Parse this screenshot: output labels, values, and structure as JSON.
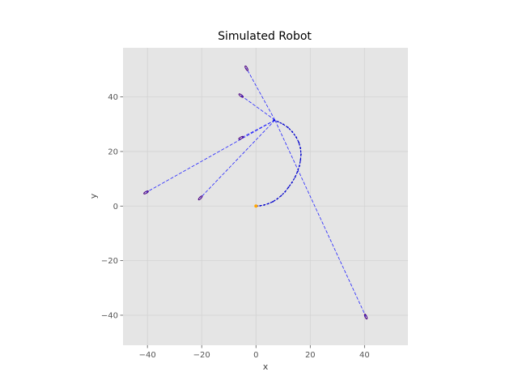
{
  "chart_data": {
    "type": "line",
    "title": "Simulated Robot",
    "xlabel": "x",
    "ylabel": "y",
    "xlim": [
      -49,
      56
    ],
    "ylim": [
      -51,
      58
    ],
    "xticks": [
      -40,
      -20,
      0,
      20,
      40
    ],
    "yticks": [
      -40,
      -20,
      0,
      20,
      40
    ],
    "grid": true,
    "colors": {
      "background": "#e5e5e5",
      "grid": "#d3d3d3",
      "path": "#0000cc",
      "rays": "#2222ff",
      "start": "#ffa500",
      "landmarks": "#4b0082"
    },
    "start_point": [
      0,
      0
    ],
    "trajectory": [
      [
        0,
        0
      ],
      [
        1.5,
        0.1
      ],
      [
        3,
        0.4
      ],
      [
        4.6,
        0.9
      ],
      [
        6.2,
        1.6
      ],
      [
        7.8,
        2.6
      ],
      [
        9.3,
        3.8
      ],
      [
        10.7,
        5.2
      ],
      [
        12,
        6.9
      ],
      [
        13.3,
        8.7
      ],
      [
        14.4,
        10.6
      ],
      [
        15.3,
        12.6
      ],
      [
        16,
        14.7
      ],
      [
        16.4,
        16.8
      ],
      [
        16.6,
        19
      ],
      [
        16.4,
        21.2
      ],
      [
        15.8,
        23.3
      ],
      [
        14.8,
        25.3
      ],
      [
        13.4,
        27.2
      ],
      [
        11.8,
        28.8
      ],
      [
        10,
        30
      ],
      [
        8.2,
        30.9
      ],
      [
        6.5,
        31.5
      ]
    ],
    "ray_origin": [
      7,
      31.5
    ],
    "landmarks": [
      [
        -3.5,
        50.5
      ],
      [
        -5.5,
        40.5
      ],
      [
        -5.5,
        25
      ],
      [
        -40.5,
        5
      ],
      [
        -20.5,
        3
      ],
      [
        40.5,
        -40.5
      ]
    ]
  }
}
